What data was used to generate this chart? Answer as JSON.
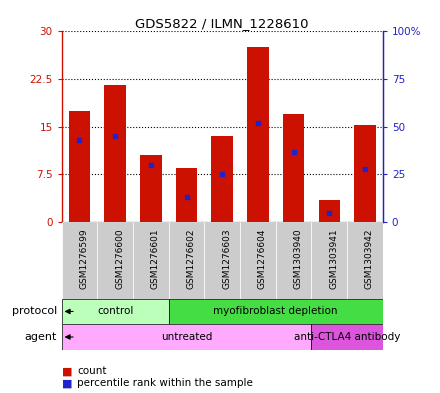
{
  "title": "GDS5822 / ILMN_1228610",
  "samples": [
    "GSM1276599",
    "GSM1276600",
    "GSM1276601",
    "GSM1276602",
    "GSM1276603",
    "GSM1276604",
    "GSM1303940",
    "GSM1303941",
    "GSM1303942"
  ],
  "counts": [
    17.5,
    21.5,
    10.5,
    8.5,
    13.5,
    27.5,
    17.0,
    3.5,
    15.2
  ],
  "percentiles": [
    43,
    45,
    30,
    13,
    25,
    52,
    37,
    5,
    28
  ],
  "ylim_left": [
    0,
    30
  ],
  "ylim_right": [
    0,
    100
  ],
  "yticks_left": [
    0,
    7.5,
    15,
    22.5,
    30
  ],
  "ytick_labels_left": [
    "0",
    "7.5",
    "15",
    "22.5",
    "30"
  ],
  "yticks_right": [
    0,
    25,
    50,
    75,
    100
  ],
  "ytick_labels_right": [
    "0",
    "25",
    "50",
    "75",
    "100%"
  ],
  "bar_color": "#cc1100",
  "dot_color": "#2222cc",
  "protocol_groups": [
    {
      "label": "control",
      "start": 0,
      "end": 3,
      "color": "#bbffbb"
    },
    {
      "label": "myofibroblast depletion",
      "start": 3,
      "end": 9,
      "color": "#44dd44"
    }
  ],
  "agent_groups": [
    {
      "label": "untreated",
      "start": 0,
      "end": 7,
      "color": "#ffaaff"
    },
    {
      "label": "anti-CTLA4 antibody",
      "start": 7,
      "end": 9,
      "color": "#dd55dd"
    }
  ],
  "legend_count_label": "count",
  "legend_pct_label": "percentile rank within the sample",
  "label_protocol": "protocol",
  "label_agent": "agent",
  "sample_bg": "#cccccc",
  "bar_width": 0.6
}
